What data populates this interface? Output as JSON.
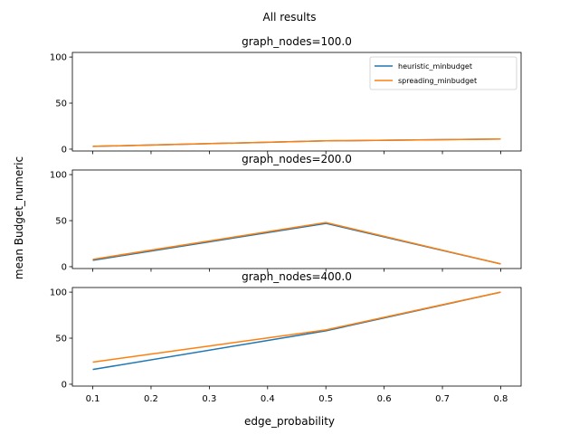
{
  "figure": {
    "suptitle": "All results",
    "xlabel": "edge_probability",
    "ylabel": "mean Budget_numeric"
  },
  "colors": {
    "heuristic_minbudget": "#1f77b4",
    "spreading_minbudget": "#ff7f0e"
  },
  "chart_data": [
    {
      "type": "line",
      "title": "graph_nodes=100.0",
      "x": [
        0.1,
        0.5,
        0.8
      ],
      "xticks": [
        0.1,
        0.2,
        0.3,
        0.4,
        0.5,
        0.6,
        0.7,
        0.8
      ],
      "xtick_labels": [
        "0.1",
        "0.2",
        "0.3",
        "0.4",
        "0.5",
        "0.6",
        "0.7",
        "0.8"
      ],
      "xlim": [
        0.065,
        0.835
      ],
      "ylim": [
        -2,
        105
      ],
      "yticks": [
        0,
        50,
        100
      ],
      "ytick_labels": [
        "0",
        "50",
        "100"
      ],
      "legend": "upper-right",
      "series": [
        {
          "name": "heuristic_minbudget",
          "values": [
            3,
            9,
            11
          ]
        },
        {
          "name": "spreading_minbudget",
          "values": [
            3,
            9,
            11
          ]
        }
      ]
    },
    {
      "type": "line",
      "title": "graph_nodes=200.0",
      "x": [
        0.1,
        0.5,
        0.8
      ],
      "xticks": [
        0.1,
        0.2,
        0.3,
        0.4,
        0.5,
        0.6,
        0.7,
        0.8
      ],
      "xlim": [
        0.065,
        0.835
      ],
      "ylim": [
        -2,
        105
      ],
      "yticks": [
        0,
        50,
        100
      ],
      "ytick_labels": [
        "0",
        "50",
        "100"
      ],
      "series": [
        {
          "name": "heuristic_minbudget",
          "values": [
            7,
            47,
            3
          ]
        },
        {
          "name": "spreading_minbudget",
          "values": [
            8,
            48,
            3
          ]
        }
      ]
    },
    {
      "type": "line",
      "title": "graph_nodes=400.0",
      "x": [
        0.1,
        0.5,
        0.8
      ],
      "xticks": [
        0.1,
        0.2,
        0.3,
        0.4,
        0.5,
        0.6,
        0.7,
        0.8
      ],
      "xtick_labels": [
        "0.1",
        "0.2",
        "0.3",
        "0.4",
        "0.5",
        "0.6",
        "0.7",
        "0.8"
      ],
      "xlim": [
        0.065,
        0.835
      ],
      "ylim": [
        -2,
        105
      ],
      "yticks": [
        0,
        50,
        100
      ],
      "ytick_labels": [
        "0",
        "50",
        "100"
      ],
      "series": [
        {
          "name": "heuristic_minbudget",
          "values": [
            16,
            58,
            100
          ]
        },
        {
          "name": "spreading_minbudget",
          "values": [
            24,
            59,
            100
          ]
        }
      ]
    }
  ]
}
